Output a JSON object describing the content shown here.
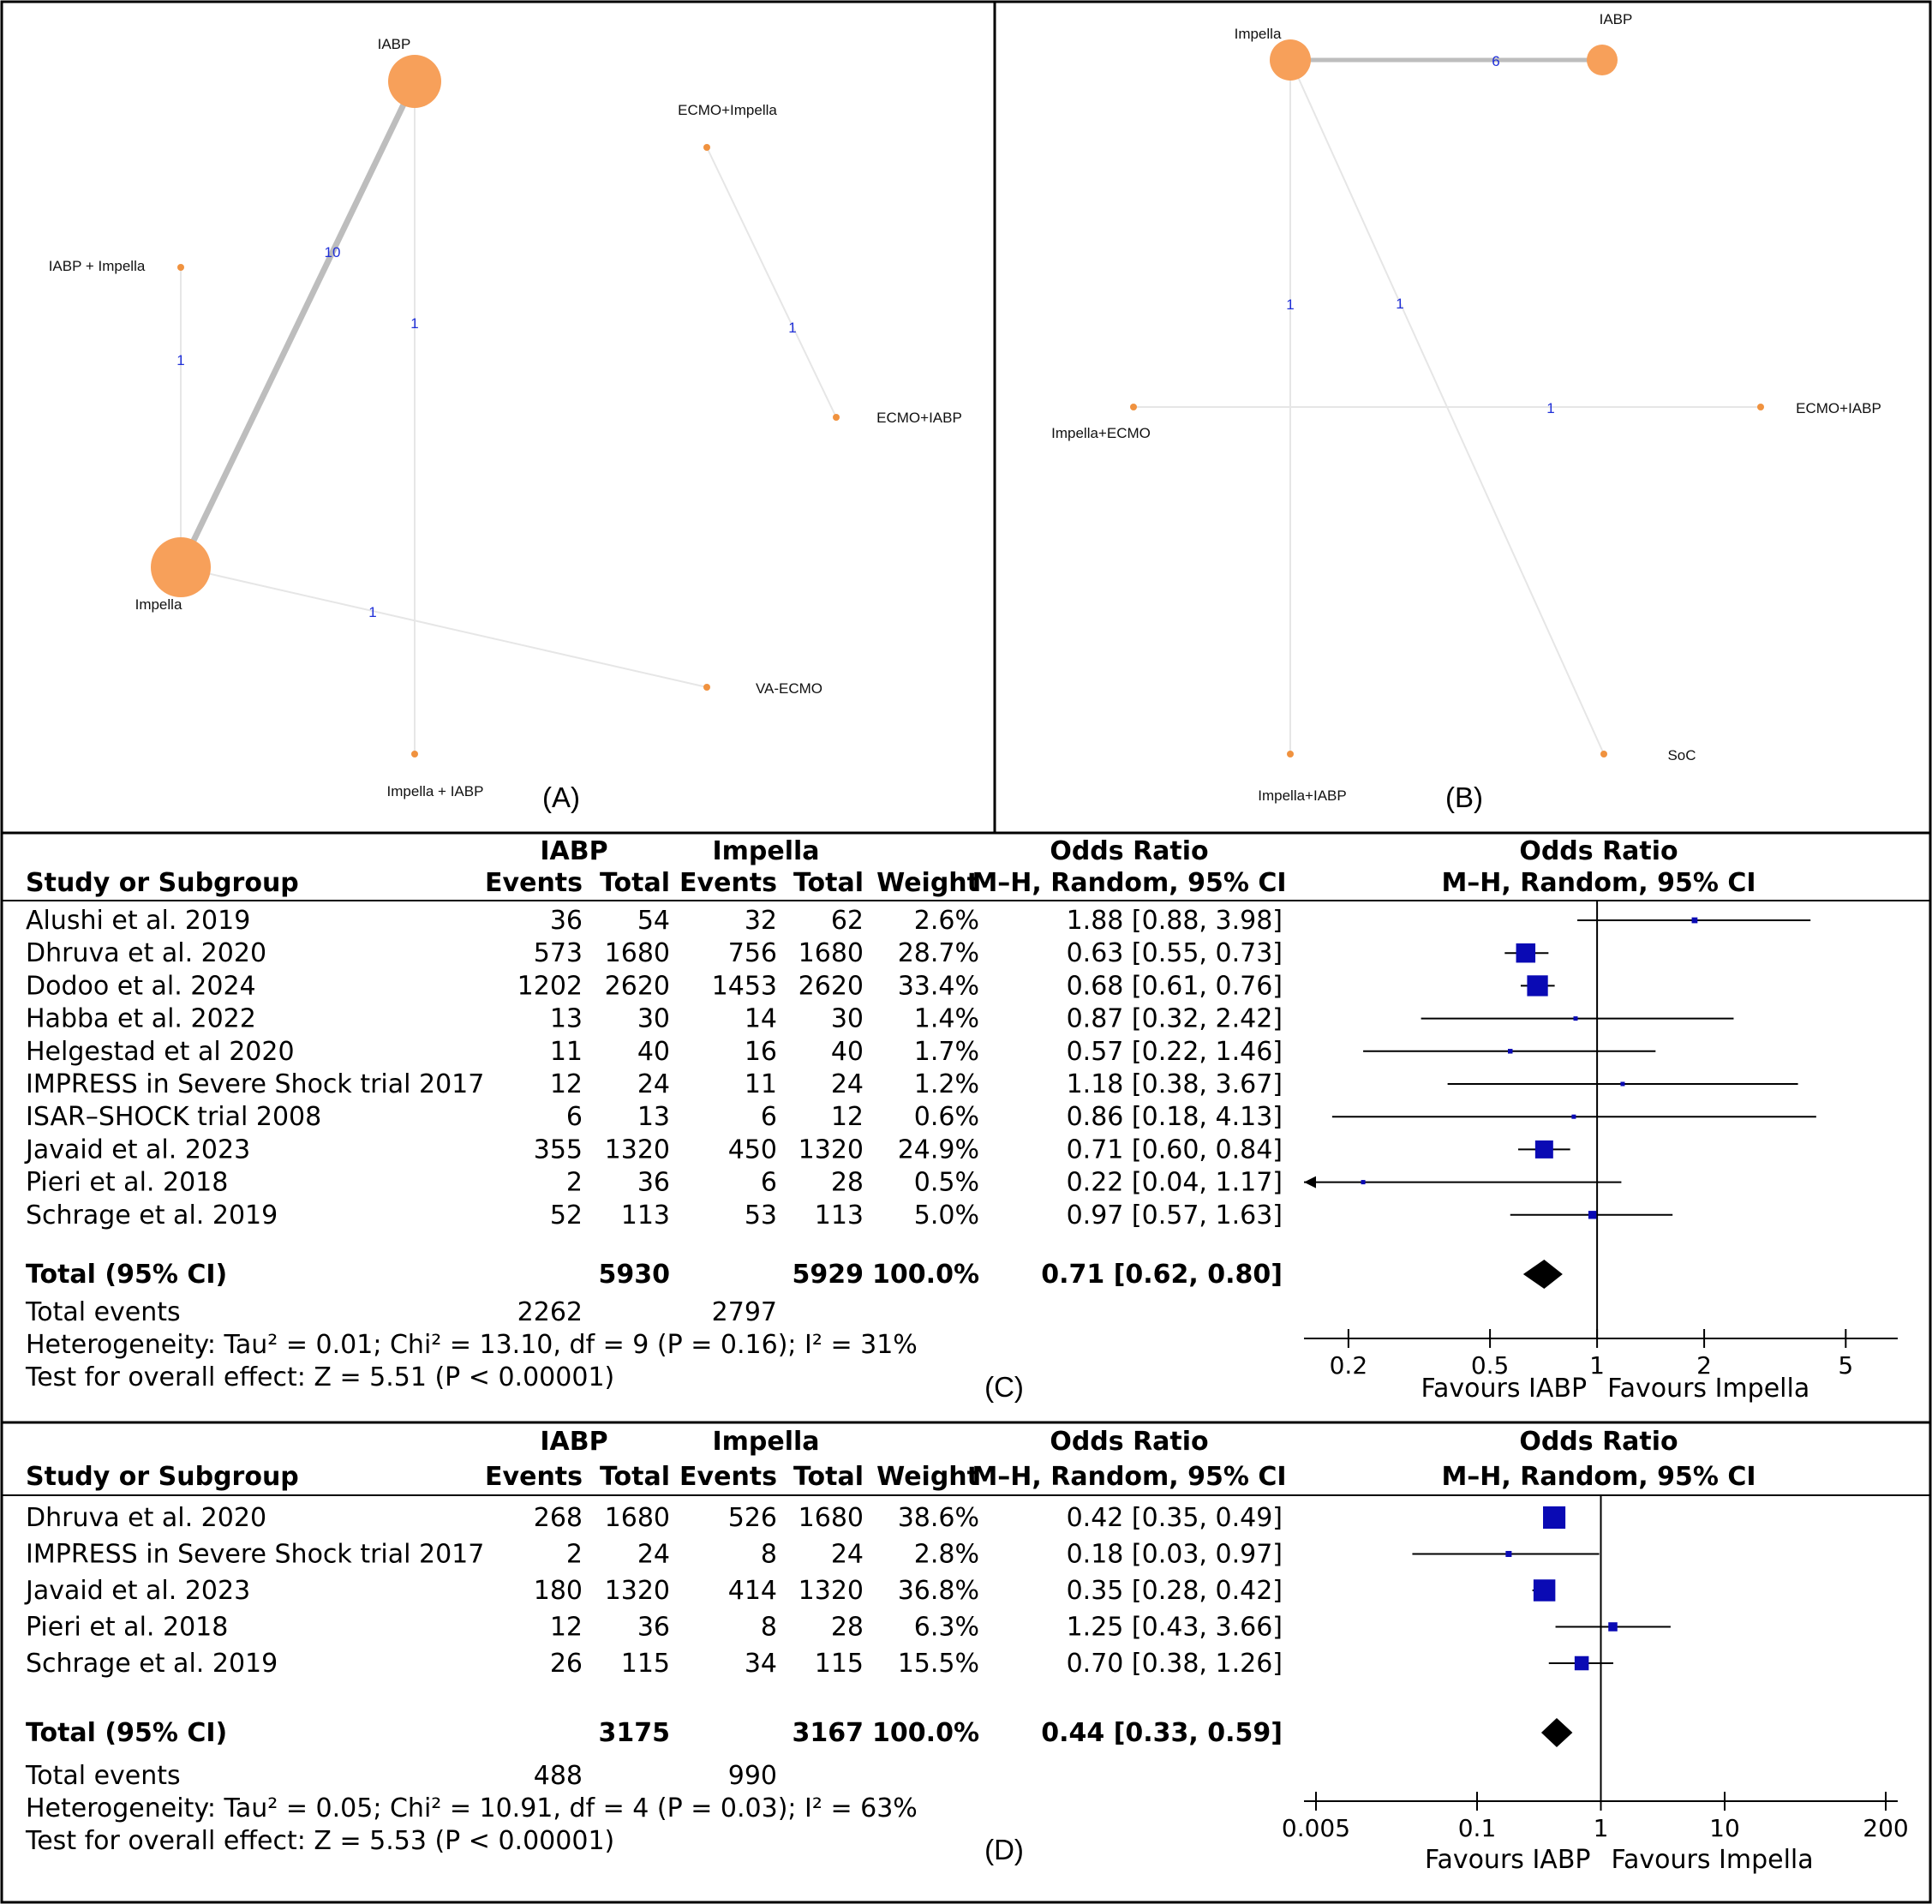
{
  "panels": {
    "a": "(A)",
    "b": "(B)",
    "c": "(C)",
    "d": "(D)"
  },
  "networkA": {
    "nodes": [
      "IABP",
      "ECMO+Impella",
      "IABP + Impella",
      "ECMO+IABP",
      "Impella",
      "VA-ECMO",
      "Impella + IABP"
    ],
    "edges": [
      {
        "from": "IABP",
        "to": "Impella",
        "label": "10"
      },
      {
        "from": "IABP",
        "to": "Impella + IABP",
        "label": "1"
      },
      {
        "from": "IABP + Impella",
        "to": "Impella",
        "label": "1"
      },
      {
        "from": "ECMO+Impella",
        "to": "ECMO+IABP",
        "label": "1"
      },
      {
        "from": "Impella",
        "to": "VA-ECMO",
        "label": "1"
      }
    ]
  },
  "networkB": {
    "nodes": [
      "Impella",
      "IABP",
      "Impella+ECMO",
      "ECMO+IABP",
      "Impella+IABP",
      "SoC"
    ],
    "edges": [
      {
        "from": "Impella",
        "to": "IABP",
        "label": "6"
      },
      {
        "from": "Impella",
        "to": "Impella+IABP",
        "label": "1"
      },
      {
        "from": "Impella",
        "to": "SoC",
        "label": "1"
      },
      {
        "from": "Impella+ECMO",
        "to": "ECMO+IABP",
        "label": "1"
      }
    ]
  },
  "headers": {
    "group1": "IABP",
    "group2": "Impella",
    "or": "Odds Ratio",
    "study": "Study or Subgroup",
    "events": "Events",
    "total": "Total",
    "weight": "Weight",
    "method": "M–H, Random, 95% CI"
  },
  "chart_data": [
    {
      "type": "forest",
      "panel": "(C)",
      "studies": [
        {
          "study": "Alushi et al. 2019",
          "e1": "36",
          "n1": "54",
          "e2": "32",
          "n2": "62",
          "weight": "2.6%",
          "ci": "1.88 [0.88, 3.98]",
          "or": 1.88,
          "lo": 0.88,
          "hi": 3.98,
          "w": 2.6
        },
        {
          "study": "Dhruva et al. 2020",
          "e1": "573",
          "n1": "1680",
          "e2": "756",
          "n2": "1680",
          "weight": "28.7%",
          "ci": "0.63 [0.55, 0.73]",
          "or": 0.63,
          "lo": 0.55,
          "hi": 0.73,
          "w": 28.7
        },
        {
          "study": "Dodoo et al. 2024",
          "e1": "1202",
          "n1": "2620",
          "e2": "1453",
          "n2": "2620",
          "weight": "33.4%",
          "ci": "0.68 [0.61, 0.76]",
          "or": 0.68,
          "lo": 0.61,
          "hi": 0.76,
          "w": 33.4
        },
        {
          "study": "Habba et al. 2022",
          "e1": "13",
          "n1": "30",
          "e2": "14",
          "n2": "30",
          "weight": "1.4%",
          "ci": "0.87 [0.32, 2.42]",
          "or": 0.87,
          "lo": 0.32,
          "hi": 2.42,
          "w": 1.4
        },
        {
          "study": "Helgestad et al  2020",
          "e1": "11",
          "n1": "40",
          "e2": "16",
          "n2": "40",
          "weight": "1.7%",
          "ci": "0.57 [0.22, 1.46]",
          "or": 0.57,
          "lo": 0.22,
          "hi": 1.46,
          "w": 1.7
        },
        {
          "study": "IMPRESS in Severe Shock trial 2017",
          "e1": "12",
          "n1": "24",
          "e2": "11",
          "n2": "24",
          "weight": "1.2%",
          "ci": "1.18 [0.38, 3.67]",
          "or": 1.18,
          "lo": 0.38,
          "hi": 3.67,
          "w": 1.2
        },
        {
          "study": "ISAR–SHOCK trial 2008",
          "e1": "6",
          "n1": "13",
          "e2": "6",
          "n2": "12",
          "weight": "0.6%",
          "ci": "0.86 [0.18, 4.13]",
          "or": 0.86,
          "lo": 0.18,
          "hi": 4.13,
          "w": 0.6
        },
        {
          "study": "Javaid et al. 2023",
          "e1": "355",
          "n1": "1320",
          "e2": "450",
          "n2": "1320",
          "weight": "24.9%",
          "ci": "0.71 [0.60, 0.84]",
          "or": 0.71,
          "lo": 0.6,
          "hi": 0.84,
          "w": 24.9
        },
        {
          "study": "Pieri et al. 2018",
          "e1": "2",
          "n1": "36",
          "e2": "6",
          "n2": "28",
          "weight": "0.5%",
          "ci": "0.22 [0.04, 1.17]",
          "or": 0.22,
          "lo": 0.04,
          "hi": 1.17,
          "w": 0.5
        },
        {
          "study": "Schrage et al. 2019",
          "e1": "52",
          "n1": "113",
          "e2": "53",
          "n2": "113",
          "weight": "5.0%",
          "ci": "0.97 [0.57, 1.63]",
          "or": 0.97,
          "lo": 0.57,
          "hi": 1.63,
          "w": 5.0
        }
      ],
      "total": {
        "label": "Total (95% CI)",
        "n1": "5930",
        "n2": "5929",
        "weight": "100.0%",
        "ci": "0.71 [0.62, 0.80]",
        "or": 0.71,
        "lo": 0.62,
        "hi": 0.8
      },
      "events": {
        "label": "Total events",
        "e1": "2262",
        "e2": "2797"
      },
      "heterogeneity": "Heterogeneity: Tau² = 0.01; Chi² = 13.10, df = 9 (P = 0.16); I² = 31%",
      "overall": "Test for overall effect: Z = 5.51 (P < 0.00001)",
      "ticks": [
        {
          "v": 0.2,
          "t": "0.2"
        },
        {
          "v": 0.5,
          "t": "0.5"
        },
        {
          "v": 1,
          "t": "1"
        },
        {
          "v": 2,
          "t": "2"
        },
        {
          "v": 5,
          "t": "5"
        }
      ],
      "xlim": [
        0.15,
        7
      ],
      "favours_left": "Favours IABP",
      "favours_right": "Favours Impella"
    },
    {
      "type": "forest",
      "panel": "(D)",
      "studies": [
        {
          "study": "Dhruva et al. 2020",
          "e1": "268",
          "n1": "1680",
          "e2": "526",
          "n2": "1680",
          "weight": "38.6%",
          "ci": "0.42 [0.35, 0.49]",
          "or": 0.42,
          "lo": 0.35,
          "hi": 0.49,
          "w": 38.6
        },
        {
          "study": "IMPRESS in Severe Shock trial 2017",
          "e1": "2",
          "n1": "24",
          "e2": "8",
          "n2": "24",
          "weight": "2.8%",
          "ci": "0.18 [0.03, 0.97]",
          "or": 0.18,
          "lo": 0.03,
          "hi": 0.97,
          "w": 2.8
        },
        {
          "study": "Javaid et al. 2023",
          "e1": "180",
          "n1": "1320",
          "e2": "414",
          "n2": "1320",
          "weight": "36.8%",
          "ci": "0.35 [0.28, 0.42]",
          "or": 0.35,
          "lo": 0.28,
          "hi": 0.42,
          "w": 36.8
        },
        {
          "study": "Pieri et al. 2018",
          "e1": "12",
          "n1": "36",
          "e2": "8",
          "n2": "28",
          "weight": "6.3%",
          "ci": "1.25 [0.43, 3.66]",
          "or": 1.25,
          "lo": 0.43,
          "hi": 3.66,
          "w": 6.3
        },
        {
          "study": "Schrage et al. 2019",
          "e1": "26",
          "n1": "115",
          "e2": "34",
          "n2": "115",
          "weight": "15.5%",
          "ci": "0.70 [0.38, 1.26]",
          "or": 0.7,
          "lo": 0.38,
          "hi": 1.26,
          "w": 15.5
        }
      ],
      "total": {
        "label": "Total (95% CI)",
        "n1": "3175",
        "n2": "3167",
        "weight": "100.0%",
        "ci": "0.44 [0.33, 0.59]",
        "or": 0.44,
        "lo": 0.33,
        "hi": 0.59
      },
      "events": {
        "label": "Total events",
        "e1": "488",
        "e2": "990"
      },
      "heterogeneity": "Heterogeneity: Tau² = 0.05; Chi² = 10.91, df = 4 (P = 0.03); I² = 63%",
      "overall": "Test for overall effect: Z = 5.53 (P < 0.00001)",
      "ticks": [
        {
          "v": 0.005,
          "t": "0.005"
        },
        {
          "v": 0.1,
          "t": "0.1"
        },
        {
          "v": 1,
          "t": "1"
        },
        {
          "v": 10,
          "t": "10"
        },
        {
          "v": 200,
          "t": "200"
        }
      ],
      "xlim": [
        0.004,
        250
      ],
      "favours_left": "Favours IABP",
      "favours_right": "Favours Impella"
    }
  ]
}
